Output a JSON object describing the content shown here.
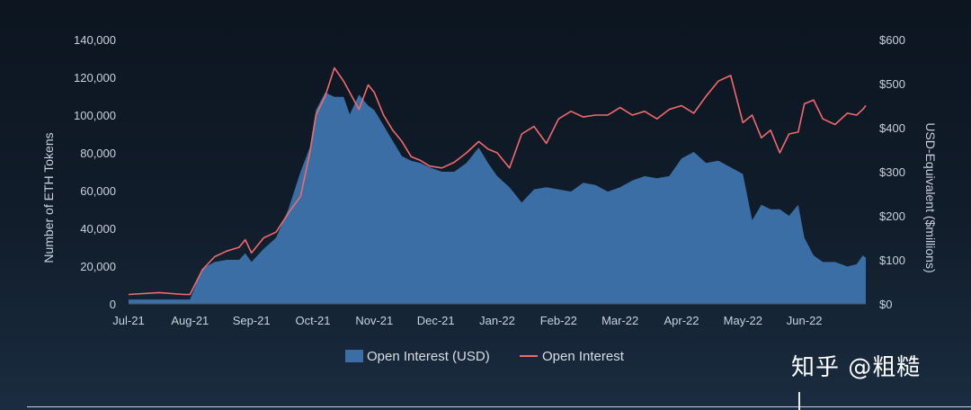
{
  "chart_data": {
    "type": "area",
    "title": "",
    "ylabel": "Number of ETH Tokens",
    "y2label": "USD-Equivalent ($millions)",
    "xlabel": "",
    "x_ticks": [
      "Jul-21",
      "Aug-21",
      "Sep-21",
      "Oct-21",
      "Nov-21",
      "Dec-21",
      "Jan-22",
      "Feb-22",
      "Mar-22",
      "Apr-22",
      "May-22",
      "Jun-22"
    ],
    "y_ticks": [
      "0",
      "20,000",
      "40,000",
      "60,000",
      "80,000",
      "100,000",
      "120,000",
      "140,000"
    ],
    "y2_ticks": [
      "$0",
      "$100",
      "$200",
      "$300",
      "$400",
      "$500",
      "$600"
    ],
    "ylim": [
      0,
      140000
    ],
    "y2lim": [
      0,
      600
    ],
    "x_index_range": [
      0,
      12
    ],
    "grid": false,
    "legend_position": "bottom-center",
    "series": [
      {
        "name": "Open Interest (USD)",
        "axis": "right",
        "color": "#3a6ea5",
        "x": [
          0,
          0.5,
          0.9,
          1.0,
          1.2,
          1.4,
          1.6,
          1.8,
          1.9,
          2.0,
          2.2,
          2.4,
          2.6,
          2.8,
          2.95,
          3.05,
          3.2,
          3.35,
          3.5,
          3.6,
          3.75,
          3.9,
          4.0,
          4.15,
          4.3,
          4.45,
          4.6,
          4.75,
          4.9,
          5.1,
          5.3,
          5.5,
          5.7,
          5.85,
          6.0,
          6.2,
          6.4,
          6.6,
          6.8,
          7.0,
          7.2,
          7.4,
          7.6,
          7.8,
          8.0,
          8.2,
          8.4,
          8.6,
          8.8,
          9.0,
          9.2,
          9.4,
          9.6,
          9.8,
          10.0,
          10.15,
          10.3,
          10.45,
          10.6,
          10.75,
          10.9,
          11.0,
          11.15,
          11.3,
          11.5,
          11.7,
          11.85,
          11.95,
          12.0
        ],
        "y": [
          10,
          10,
          10,
          10,
          80,
          95,
          100,
          100,
          115,
          95,
          125,
          150,
          215,
          300,
          355,
          440,
          480,
          470,
          470,
          430,
          475,
          450,
          440,
          405,
          370,
          335,
          325,
          320,
          310,
          300,
          300,
          320,
          355,
          320,
          290,
          265,
          230,
          260,
          265,
          260,
          255,
          275,
          270,
          255,
          265,
          280,
          290,
          285,
          290,
          330,
          345,
          320,
          325,
          310,
          295,
          190,
          225,
          215,
          215,
          200,
          225,
          150,
          110,
          95,
          95,
          85,
          90,
          110,
          105
        ]
      },
      {
        "name": "Open Interest",
        "axis": "left",
        "color": "#f06a6e",
        "x": [
          0,
          0.5,
          0.9,
          1.0,
          1.2,
          1.4,
          1.6,
          1.8,
          1.9,
          2.0,
          2.2,
          2.4,
          2.6,
          2.8,
          2.95,
          3.05,
          3.2,
          3.35,
          3.5,
          3.6,
          3.75,
          3.9,
          4.0,
          4.15,
          4.3,
          4.45,
          4.6,
          4.75,
          4.9,
          5.1,
          5.3,
          5.5,
          5.7,
          5.85,
          6.0,
          6.2,
          6.4,
          6.6,
          6.8,
          7.0,
          7.2,
          7.4,
          7.6,
          7.8,
          8.0,
          8.2,
          8.4,
          8.6,
          8.8,
          9.0,
          9.2,
          9.4,
          9.6,
          9.8,
          10.0,
          10.15,
          10.3,
          10.45,
          10.6,
          10.75,
          10.9,
          11.0,
          11.15,
          11.3,
          11.5,
          11.7,
          11.85,
          11.95,
          12.0
        ],
        "y": [
          5000,
          6000,
          5000,
          5000,
          18000,
          25000,
          28000,
          30000,
          34000,
          27000,
          35000,
          38000,
          48000,
          57000,
          80000,
          100000,
          110000,
          125000,
          118000,
          112000,
          103000,
          116000,
          112000,
          100000,
          92000,
          86000,
          78000,
          76000,
          73000,
          72000,
          75000,
          80000,
          86000,
          82000,
          80000,
          72000,
          90000,
          94000,
          85000,
          98000,
          102000,
          99000,
          100000,
          100000,
          104000,
          100000,
          102000,
          98000,
          103000,
          105000,
          101000,
          110000,
          118000,
          121000,
          96000,
          100000,
          88000,
          92000,
          80000,
          90000,
          91000,
          106000,
          108000,
          98000,
          95000,
          101000,
          100000,
          103000,
          105000
        ]
      }
    ]
  },
  "legend": {
    "usd_label": "Open Interest (USD)",
    "tokens_label": "Open Interest"
  },
  "watermark": "知乎 @粗糙"
}
